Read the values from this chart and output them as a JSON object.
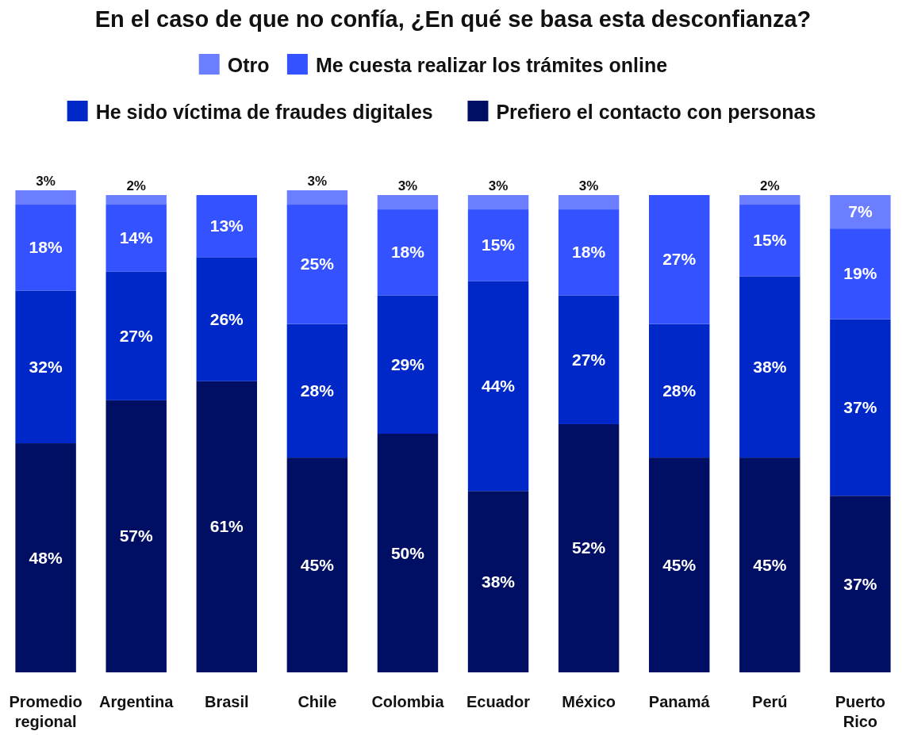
{
  "chart_data": {
    "type": "bar",
    "stacked": true,
    "title": "En el caso de que no confía, ¿En qué se basa esta desconfianza?",
    "categories": [
      "Promedio regional",
      "Argentina",
      "Brasil",
      "Chile",
      "Colombia",
      "Ecuador",
      "México",
      "Panamá",
      "Perú",
      "Puerto Rico"
    ],
    "series": [
      {
        "name": "Prefiero el contacto con personas",
        "color": "#000f63",
        "values": [
          48,
          57,
          61,
          45,
          50,
          38,
          52,
          45,
          45,
          37
        ],
        "value_labels": [
          "48%",
          "57%",
          "61%",
          "45%",
          "50%",
          "38%",
          "52%",
          "45%",
          "45%",
          "37%"
        ]
      },
      {
        "name": "He sido víctima de fraudes digitales",
        "color": "#0028c8",
        "values": [
          32,
          27,
          26,
          28,
          29,
          44,
          27,
          28,
          38,
          37
        ],
        "value_labels": [
          "32%",
          "27%",
          "26%",
          "28%",
          "29%",
          "44%",
          "27%",
          "28%",
          "38%",
          "37%"
        ]
      },
      {
        "name": "Me cuesta realizar los trámites online",
        "color": "#3452ff",
        "values": [
          18,
          14,
          13,
          25,
          18,
          15,
          18,
          27,
          15,
          19
        ],
        "value_labels": [
          "18%",
          "14%",
          "13%",
          "25%",
          "18%",
          "15%",
          "18%",
          "27%",
          "15%",
          "19%"
        ]
      },
      {
        "name": "Otro",
        "color": "#6b7eff",
        "values": [
          3,
          2,
          null,
          3,
          3,
          3,
          3,
          null,
          2,
          7
        ],
        "value_labels": [
          "3%",
          "2%",
          null,
          "3%",
          "3%",
          "3%",
          "3%",
          null,
          "2%",
          "7%"
        ]
      }
    ],
    "legend": "top"
  }
}
